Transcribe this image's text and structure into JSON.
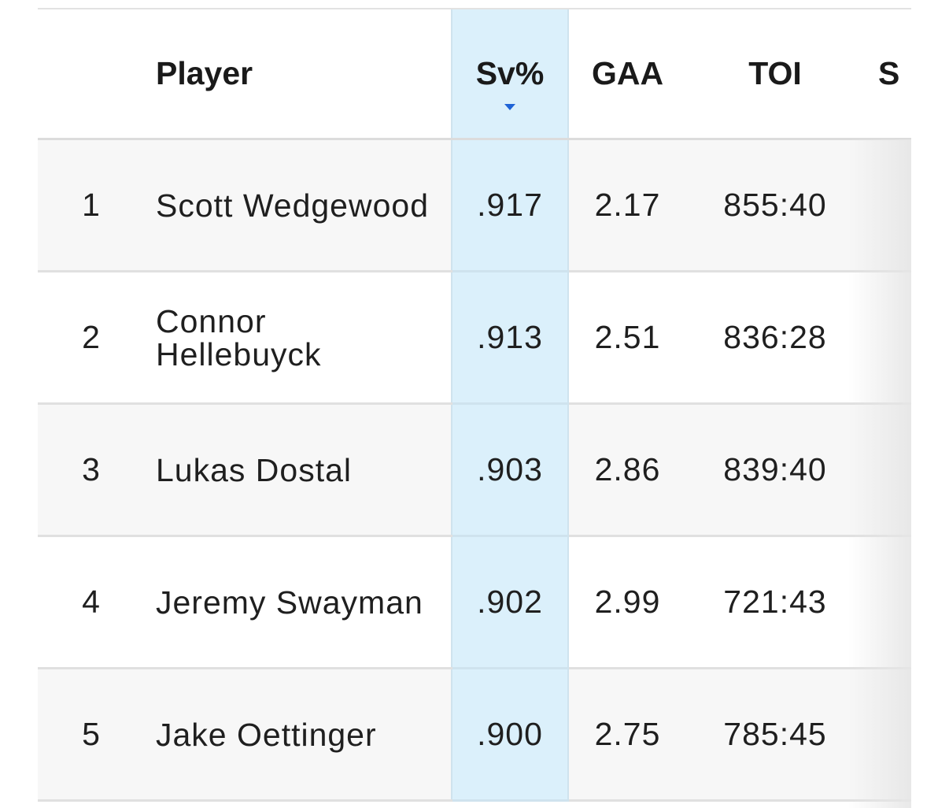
{
  "table": {
    "headers": {
      "rank": "",
      "player": "Player",
      "sv": "Sv%",
      "gaa": "GAA",
      "toi": "TOI",
      "next": "S"
    },
    "sorted_by": "Sv%",
    "sort_direction": "descending",
    "rows": [
      {
        "rank": "1",
        "player": "Scott Wedgewood",
        "sv": ".917",
        "gaa": "2.17",
        "toi": "855:40"
      },
      {
        "rank": "2",
        "player": "Connor Hellebuyck",
        "sv": ".913",
        "gaa": "2.51",
        "toi": "836:28"
      },
      {
        "rank": "3",
        "player": "Lukas Dostal",
        "sv": ".903",
        "gaa": "2.86",
        "toi": "839:40"
      },
      {
        "rank": "4",
        "player": "Jeremy Swayman",
        "sv": ".902",
        "gaa": "2.99",
        "toi": "721:43"
      },
      {
        "rank": "5",
        "player": "Jake Oettinger",
        "sv": ".900",
        "gaa": "2.75",
        "toi": "785:45"
      }
    ]
  },
  "colors": {
    "sorted_column_bg": "#dbf0fb",
    "sort_caret": "#1f63d6",
    "row_alt_bg": "#f7f7f7"
  }
}
